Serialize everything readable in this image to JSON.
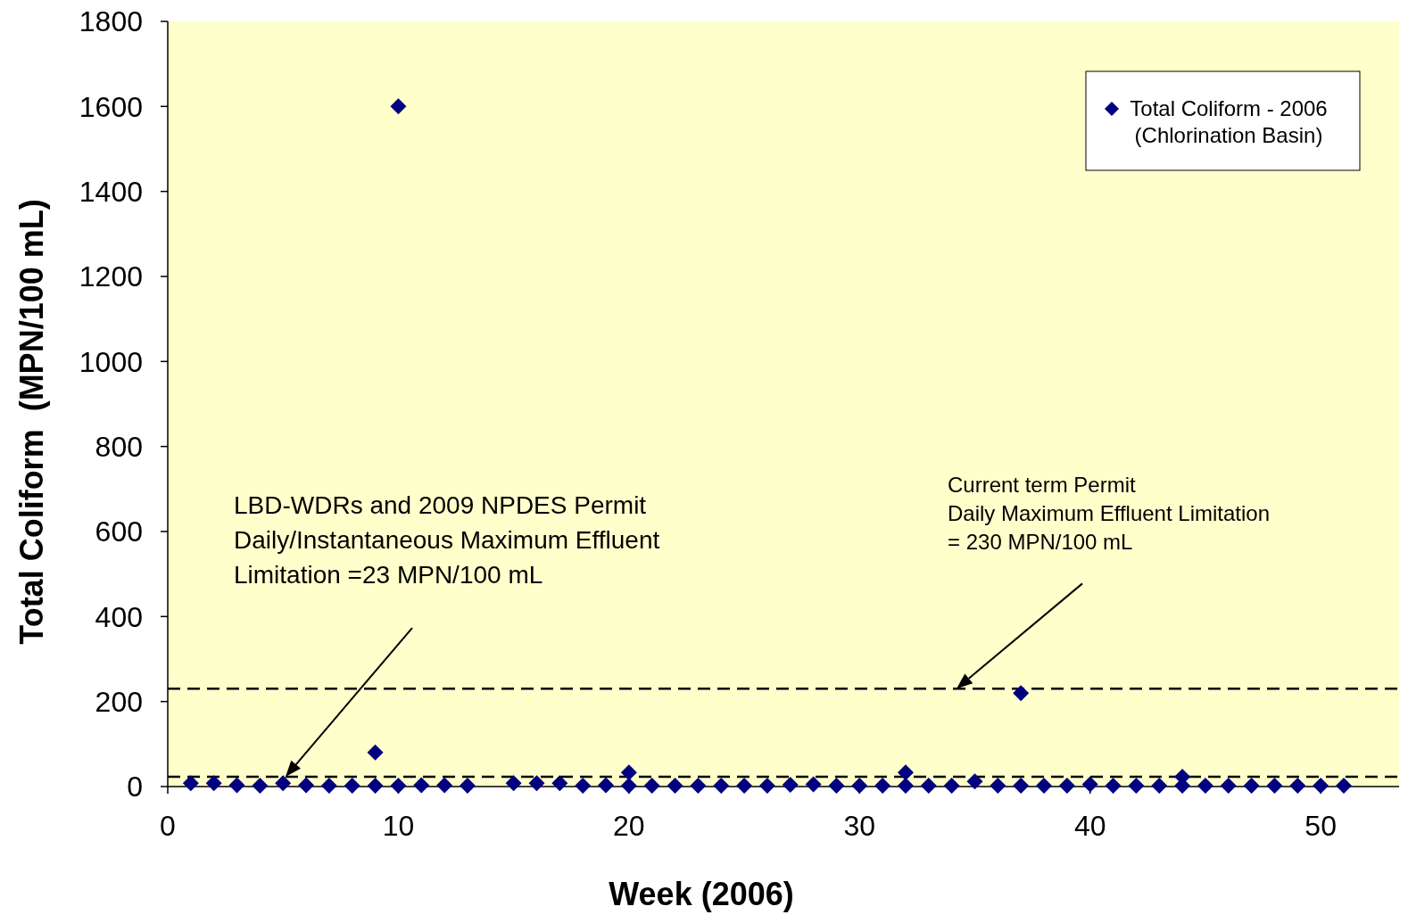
{
  "chart_data": {
    "type": "scatter",
    "xlabel": "Week (2006)",
    "ylabel": "Total Coliform  (MPN/100 mL)",
    "xlim": [
      0,
      53.4
    ],
    "xticks": [
      0,
      10,
      20,
      30,
      40,
      50
    ],
    "ylim": [
      0,
      1800
    ],
    "yticks": [
      0,
      200,
      400,
      600,
      800,
      1000,
      1200,
      1400,
      1600,
      1800
    ],
    "grid": false,
    "legend": "top right",
    "marker": "diamond",
    "series": [
      {
        "name": "Total Coliform - 2006\n(Chlorination Basin)",
        "color": "#000080",
        "x": [
          1,
          2,
          3,
          4,
          5,
          6,
          7,
          8,
          9,
          9,
          10,
          10,
          11,
          12,
          13,
          15,
          16,
          17,
          18,
          19,
          20,
          20,
          21,
          22,
          23,
          24,
          25,
          26,
          27,
          28,
          29,
          30,
          31,
          32,
          32,
          33,
          34,
          35,
          36,
          37,
          37,
          38,
          39,
          40,
          41,
          42,
          43,
          44,
          44,
          45,
          46,
          47,
          48,
          49,
          50,
          51
        ],
        "values": [
          8,
          8,
          3,
          2,
          8,
          3,
          2,
          2,
          2,
          80,
          2,
          1600,
          3,
          3,
          2,
          8,
          8,
          8,
          2,
          3,
          2,
          33,
          2,
          2,
          2,
          2,
          2,
          2,
          4,
          5,
          2,
          2,
          2,
          2,
          33,
          2,
          2,
          12,
          2,
          220,
          2,
          2,
          2,
          5,
          2,
          2,
          2,
          2,
          23,
          2,
          2,
          2,
          2,
          2,
          2,
          2
        ]
      }
    ],
    "ref_lines": [
      {
        "axis": "y",
        "value": 23,
        "line_style": "dashed",
        "color": "#000000",
        "label": "LBD-WDRs and 2009 NPDES Permit\nDaily/Instantaneous Maximum Effluent\nLimitation =23 MPN/100 mL"
      },
      {
        "axis": "y",
        "value": 230,
        "line_style": "dashed",
        "color": "#000000",
        "label": "Current term Permit\nDaily Maximum Effluent Limitation\n= 230 MPN/100 mL"
      }
    ]
  }
}
